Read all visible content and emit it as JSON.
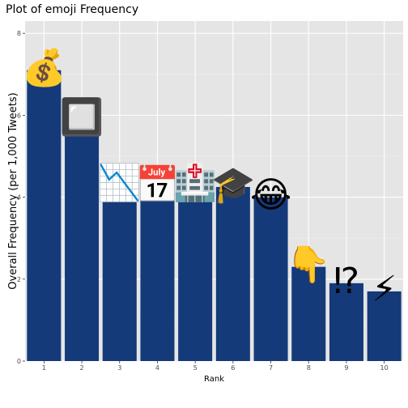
{
  "chart_data": {
    "type": "bar",
    "title": "Plot of emoji Frequency",
    "xlabel": "Rank",
    "ylabel": "Overall Frequency (per 1,000 Tweets)",
    "categories": [
      "1",
      "2",
      "3",
      "4",
      "5",
      "6",
      "7",
      "8",
      "9",
      "10"
    ],
    "values": [
      7.1,
      5.9,
      4.3,
      4.25,
      4.3,
      4.25,
      4.0,
      2.3,
      1.9,
      1.7
    ],
    "emoji_icons": [
      "money-bag-icon",
      "black-square-button-icon",
      "chart-decreasing-icon",
      "calendar-g-icon",
      "hospital-icon",
      "graduation-cap-icon",
      "face-with-tears-of-joy-icon",
      "backhand-index-pointing-down-icon",
      "exclamation-question-mark-icon",
      "high-voltage-icon"
    ],
    "emoji_glyphs": [
      "💰",
      "🔲",
      "📉",
      "📅",
      "🏥",
      "🎓",
      "😂",
      "👇",
      "⁉",
      "⚡"
    ],
    "yticks": [
      "0",
      "2",
      "4",
      "6",
      "8"
    ],
    "ylim": [
      0,
      8.3
    ],
    "grid": true,
    "colors": {
      "bar": "#143a7a",
      "panel": "#e5e5e5",
      "grid_major": "#ffffff",
      "grid_minor": "#f0f0f0"
    }
  }
}
